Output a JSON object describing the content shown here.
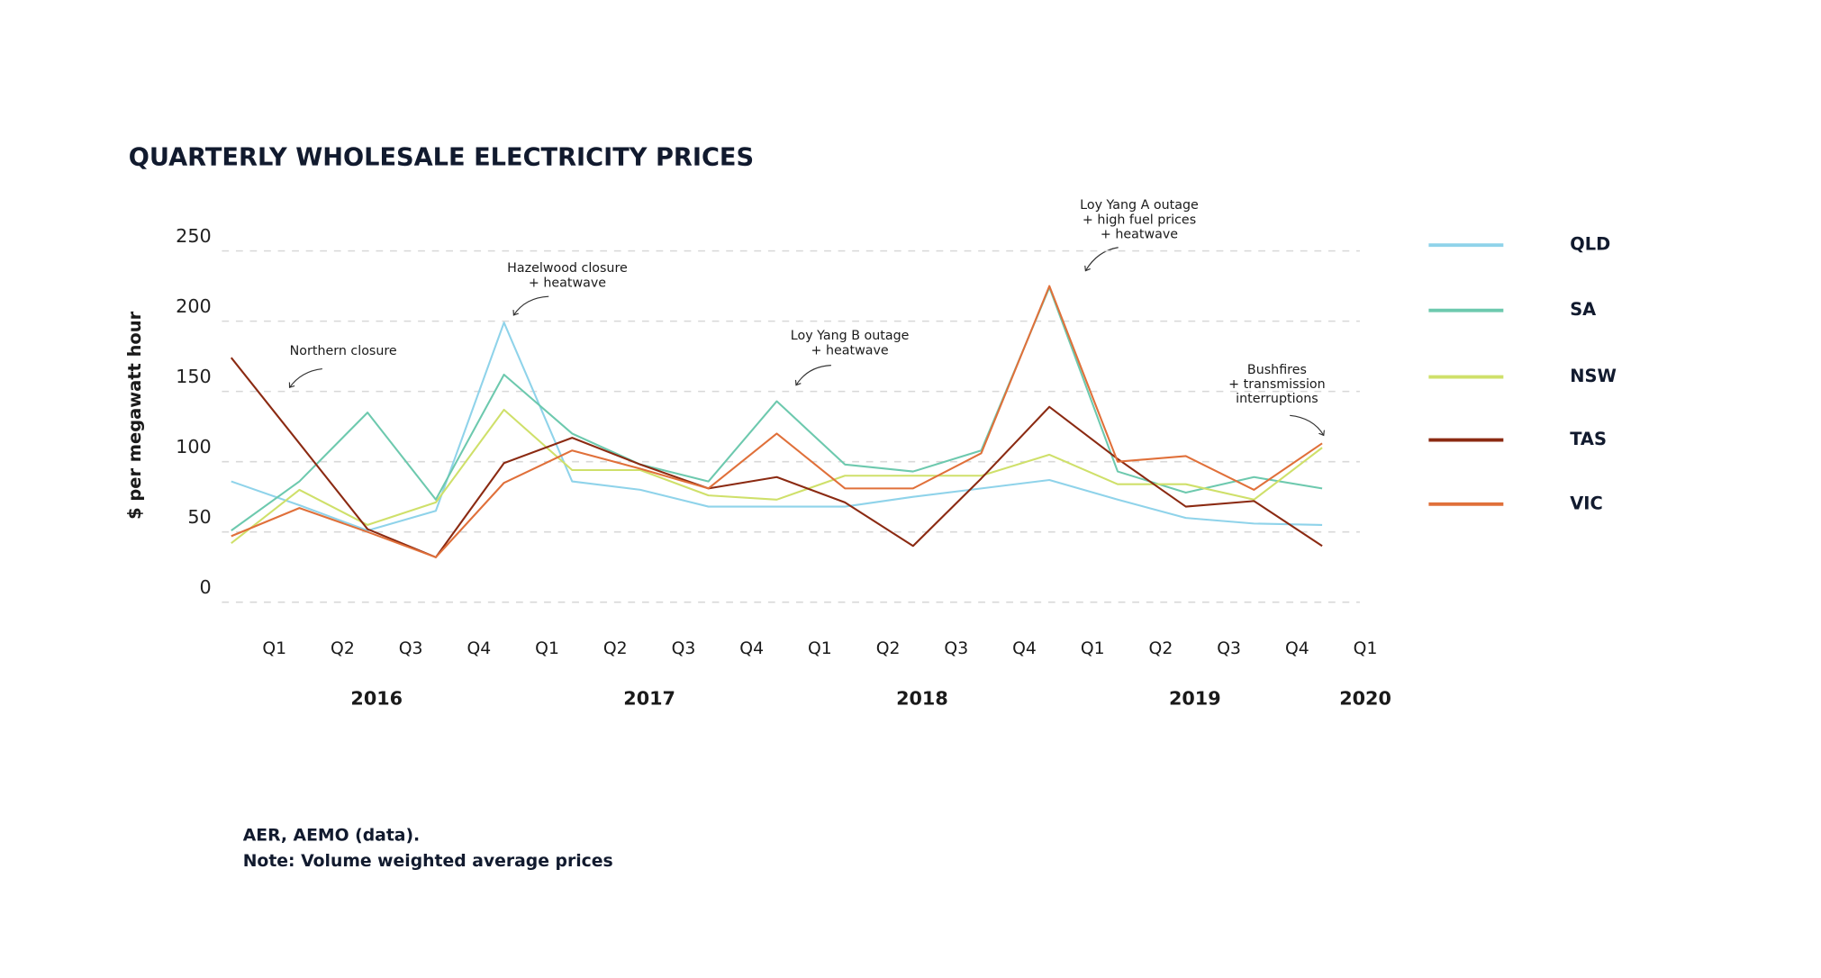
{
  "chart_data": {
    "type": "line",
    "title": "QUARTERLY WHOLESALE ELECTRICITY PRICES",
    "y_label": "$ per megawatt hour",
    "categories": [
      "Q1",
      "Q2",
      "Q3",
      "Q4",
      "Q1",
      "Q2",
      "Q3",
      "Q4",
      "Q1",
      "Q2",
      "Q3",
      "Q4",
      "Q1",
      "Q2",
      "Q3",
      "Q4",
      "Q1"
    ],
    "years": [
      "2016",
      "2017",
      "2018",
      "2019",
      "2020"
    ],
    "ylim": [
      0,
      250
    ],
    "yticks": [
      0,
      50,
      100,
      150,
      200,
      250
    ],
    "grid": true,
    "legend": "right",
    "series": [
      {
        "name": "QLD",
        "color": "#8fd3ea",
        "values": [
          86,
          69,
          51,
          65,
          199,
          86,
          80,
          68,
          68,
          68,
          75,
          81,
          87,
          73,
          60,
          56,
          55
        ]
      },
      {
        "name": "SA",
        "color": "#6dc9ae",
        "values": [
          51,
          86,
          135,
          73,
          162,
          120,
          98,
          86,
          143,
          98,
          93,
          108,
          224,
          93,
          78,
          89,
          81
        ]
      },
      {
        "name": "NSW",
        "color": "#cfe06a",
        "values": [
          42,
          80,
          55,
          71,
          137,
          94,
          94,
          76,
          73,
          90,
          90,
          90,
          105,
          84,
          84,
          73,
          110
        ]
      },
      {
        "name": "TAS",
        "color": "#8b2a12",
        "values": [
          174,
          113,
          52,
          32,
          99,
          117,
          98,
          81,
          89,
          71,
          40,
          88,
          139,
          102,
          68,
          72,
          40
        ]
      },
      {
        "name": "VIC",
        "color": "#e0703a",
        "values": [
          47,
          67,
          50,
          32,
          85,
          108,
          95,
          81,
          120,
          81,
          81,
          106,
          225,
          100,
          104,
          80,
          113
        ]
      }
    ],
    "annotations": [
      {
        "lines": [
          "Northern closure"
        ]
      },
      {
        "lines": [
          "Hazelwood closure",
          "+ heatwave"
        ]
      },
      {
        "lines": [
          "Loy Yang B outage",
          "+ heatwave"
        ]
      },
      {
        "lines": [
          "Loy Yang A outage",
          "+ high fuel prices",
          "+ heatwave"
        ]
      },
      {
        "lines": [
          "Bushfires",
          "+ transmission",
          "interruptions"
        ]
      }
    ],
    "source": [
      "AER, AEMO (data).",
      "Note: Volume weighted average prices"
    ]
  }
}
